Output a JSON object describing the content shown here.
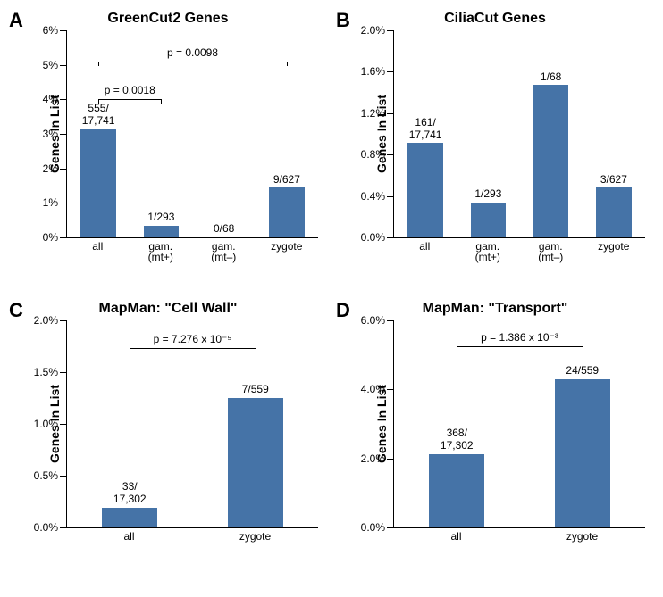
{
  "panels": {
    "A": {
      "letter": "A",
      "title": "GreenCut2 Genes",
      "ylabel": "Genes In List",
      "type": "bar",
      "ylim": [
        0,
        6
      ],
      "ytick_step": 1,
      "ytick_suffix": "%",
      "bar_color": "#4573a7",
      "background_color": "#ffffff",
      "categories": [
        "all",
        "gam.\n(mt+)",
        "gam.\n(mt–)",
        "zygote"
      ],
      "values": [
        3.13,
        0.34,
        0.0,
        1.44
      ],
      "value_labels": [
        "555/\n17,741",
        "1/293",
        "0/68",
        "9/627"
      ],
      "annotations": [
        {
          "kind": "p-bracket-flat",
          "from": 0,
          "to": 1,
          "text": "p = 0.0018",
          "y": 4.0
        },
        {
          "kind": "p-bracket-flat",
          "from": 0,
          "to": 3,
          "text": "p = 0.0098",
          "y": 5.1
        }
      ]
    },
    "B": {
      "letter": "B",
      "title": "CiliaCut Genes",
      "ylabel": "Genes In List",
      "type": "bar",
      "ylim": [
        0,
        2.0
      ],
      "ytick_step": 0.4,
      "ytick_suffix": "%",
      "ytick_decimals": 1,
      "bar_color": "#4573a7",
      "background_color": "#ffffff",
      "categories": [
        "all",
        "gam.\n(mt+)",
        "gam.\n(mt–)",
        "zygote"
      ],
      "values": [
        0.91,
        0.34,
        1.47,
        0.48
      ],
      "value_labels": [
        "161/\n17,741",
        "1/293",
        "1/68",
        "3/627"
      ],
      "annotations": []
    },
    "C": {
      "letter": "C",
      "title": "MapMan: \"Cell Wall\"",
      "ylabel": "Genes In List",
      "type": "bar",
      "ylim": [
        0,
        2.0
      ],
      "ytick_step": 0.5,
      "ytick_suffix": "%",
      "ytick_decimals": 1,
      "bar_color": "#4573a7",
      "background_color": "#ffffff",
      "categories": [
        "all",
        "zygote"
      ],
      "values": [
        0.19,
        1.25
      ],
      "value_labels": [
        "33/\n17,302",
        "7/559"
      ],
      "annotations": [
        {
          "kind": "p-bracket-U",
          "from": 0,
          "to": 1,
          "text": "p = 7.276 x 10⁻⁵",
          "y": 1.73,
          "drop": 0.11
        }
      ]
    },
    "D": {
      "letter": "D",
      "title": "MapMan: \"Transport\"",
      "ylabel": "Genes In List",
      "type": "bar",
      "ylim": [
        0,
        6.0
      ],
      "ytick_step": 2.0,
      "ytick_suffix": "%",
      "ytick_decimals": 1,
      "bar_color": "#4573a7",
      "background_color": "#ffffff",
      "categories": [
        "all",
        "zygote"
      ],
      "values": [
        2.13,
        4.29
      ],
      "value_labels": [
        "368/\n17,302",
        "24/559"
      ],
      "annotations": [
        {
          "kind": "p-bracket-U",
          "from": 0,
          "to": 1,
          "text": "p = 1.386 x 10⁻³",
          "y": 5.25,
          "drop": 0.33
        }
      ]
    }
  },
  "label_fontsize": 12,
  "title_fontsize": 16
}
